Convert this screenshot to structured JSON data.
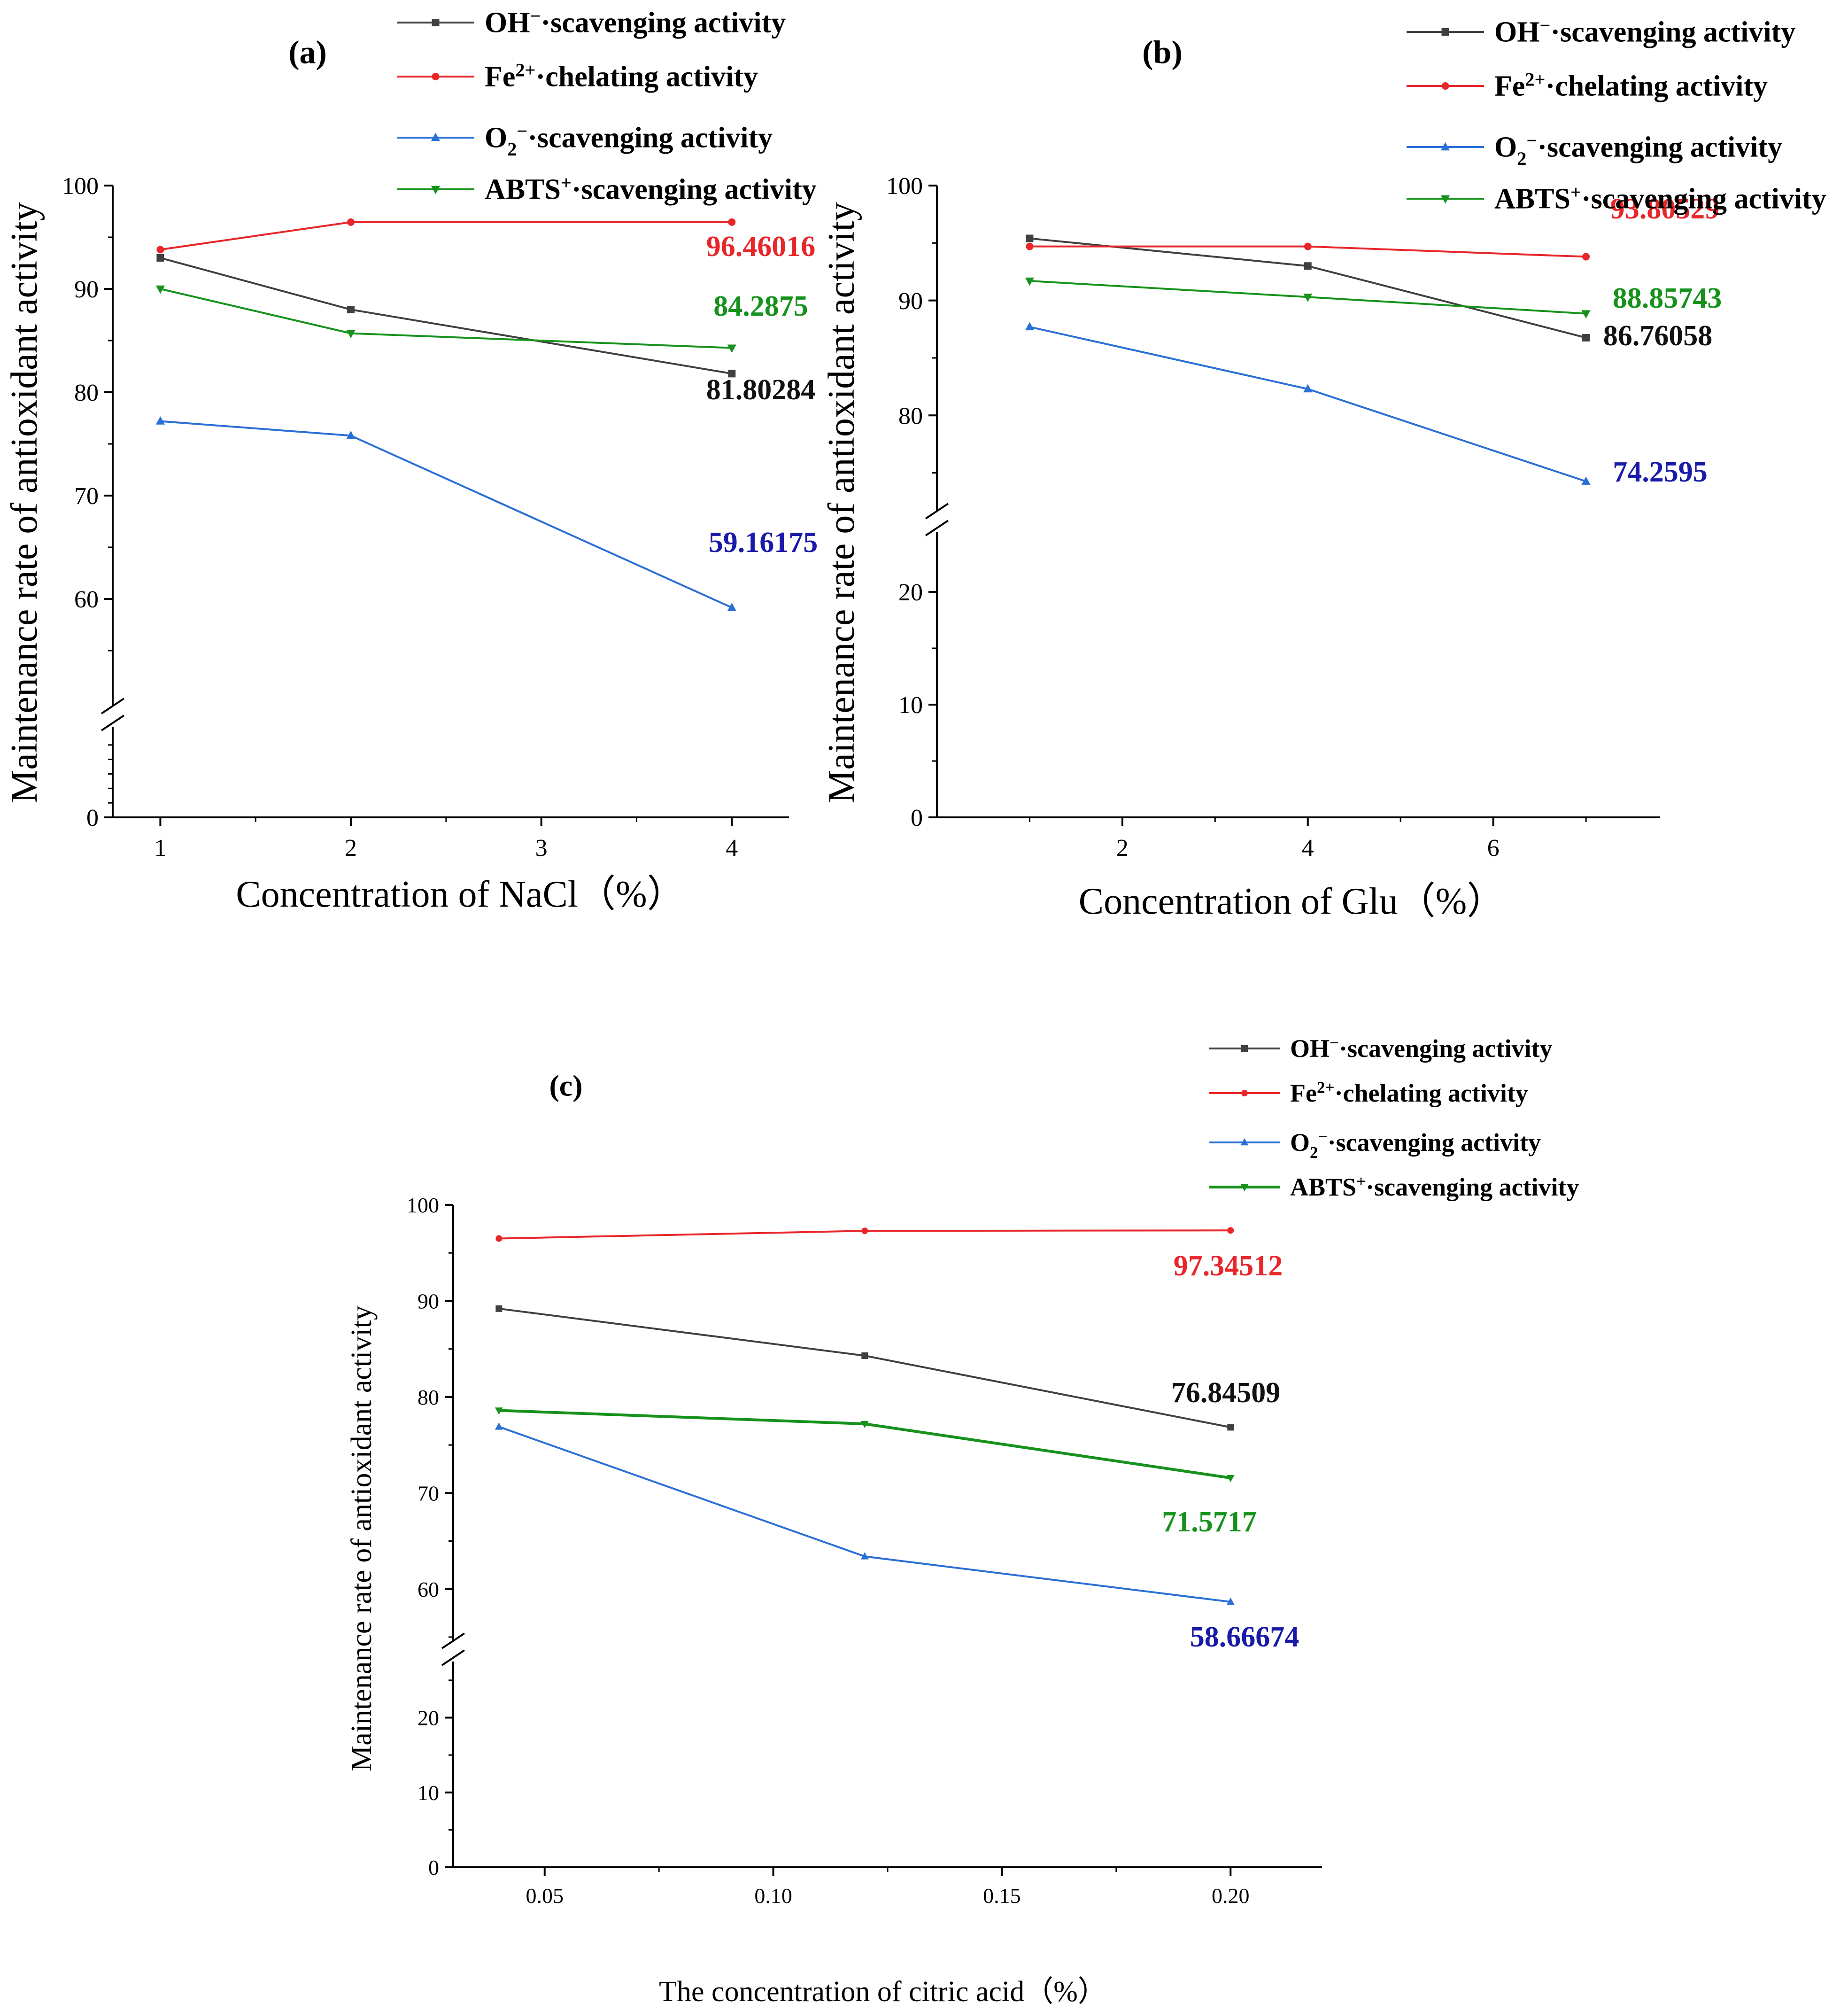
{
  "series_styles": [
    {
      "color": "#404040",
      "marker": "square"
    },
    {
      "color": "#e8262a",
      "marker": "circle"
    },
    {
      "color": "#2a6fd6",
      "marker": "triangle-up"
    },
    {
      "color": "#16921c",
      "marker": "triangle-down"
    }
  ],
  "chart_data": [
    {
      "panel_label": "(a)",
      "type": "line",
      "xlabel": "Concentration of NaCl（%）",
      "ylabel": "Maintenance rate of antioxidant activity",
      "xlim": [
        0.75,
        4.3
      ],
      "xticks": [
        1,
        2,
        3,
        4
      ],
      "x_tick_labels": [
        "1",
        "2",
        "3",
        "4"
      ],
      "y_upper_range": [
        50,
        100
      ],
      "y_lower_range": [
        0,
        6
      ],
      "yticks_upper": [
        60,
        70,
        80,
        90,
        100
      ],
      "yticks_lower": [
        0
      ],
      "axis_break": true,
      "x": [
        1,
        2,
        4
      ],
      "series": [
        {
          "name": "OH⁻·scavenging activity",
          "values": [
            93.0,
            88.0,
            81.80284
          ]
        },
        {
          "name": "Fe²⁺·chelating activity",
          "values": [
            93.8,
            96.46016,
            96.46016
          ]
        },
        {
          "name": "O₂⁻·scavenging activity",
          "values": [
            77.2,
            75.8,
            59.16175
          ]
        },
        {
          "name": "ABTS⁺·scavenging activity",
          "values": [
            90.0,
            85.7,
            84.2875
          ]
        }
      ],
      "annotations": [
        "81.80284",
        "96.46016",
        "59.16175",
        "84.2875"
      ],
      "legend_entries": [
        {
          "main": "OH",
          "sup": "−",
          "rest": "·scavenging activity"
        },
        {
          "main": "Fe",
          "sup": "2+",
          "rest": "·chelating activity"
        },
        {
          "main": "O",
          "sub": "2",
          "sup": "−",
          "rest": "·scavenging activity"
        },
        {
          "main": "ABTS",
          "sup": "+",
          "rest": "·scavenging activity"
        }
      ],
      "legend_position": "top-right"
    },
    {
      "panel_label": "(b)",
      "type": "line",
      "xlabel": "Concentration of Glu（%）",
      "ylabel": "Maintenance rate of antioxidant activity",
      "xlim": [
        0,
        7.8
      ],
      "xticks": [
        2,
        4,
        6
      ],
      "x_tick_labels": [
        "2",
        "4",
        "6"
      ],
      "y_upper_range": [
        72,
        100
      ],
      "y_lower_range": [
        0,
        25
      ],
      "yticks_upper": [
        80,
        90,
        100
      ],
      "yticks_lower": [
        0,
        10,
        20
      ],
      "axis_break": true,
      "x": [
        1,
        4,
        7
      ],
      "series": [
        {
          "name": "OH⁻·scavenging activity",
          "values": [
            95.4,
            93.0,
            86.76058
          ]
        },
        {
          "name": "Fe²⁺·chelating activity",
          "values": [
            94.7,
            94.7,
            93.80529
          ]
        },
        {
          "name": "O₂⁻·scavenging activity",
          "values": [
            87.7,
            82.3,
            74.2595
          ]
        },
        {
          "name": "ABTS⁺·scavenging activity",
          "values": [
            91.7,
            90.3,
            88.85743
          ]
        }
      ],
      "annotations": [
        "86.76058",
        "93.80529",
        "74.2595",
        "88.85743"
      ],
      "legend_entries": [
        {
          "main": "OH",
          "sup": "−",
          "rest": "·scavenging activity"
        },
        {
          "main": "Fe",
          "sup": "2+",
          "rest": "·chelating activity"
        },
        {
          "main": "O",
          "sub": "2",
          "sup": "−",
          "rest": "·scavenging activity"
        },
        {
          "main": "ABTS",
          "sup": "+",
          "rest": "·scavenging activity"
        }
      ],
      "legend_position": "top-right"
    },
    {
      "panel_label": "(c)",
      "type": "line",
      "xlabel": "The concentration of citric acid（%）",
      "ylabel": "Maintenance rate of antioxidant activity",
      "xlim": [
        0.03,
        0.22
      ],
      "xticks": [
        0.05,
        0.1,
        0.15,
        0.2
      ],
      "x_tick_labels": [
        "0.05",
        "0.10",
        "0.15",
        "0.20"
      ],
      "y_upper_range": [
        55,
        100
      ],
      "y_lower_range": [
        0,
        27
      ],
      "yticks_upper": [
        60,
        70,
        80,
        90,
        100
      ],
      "yticks_lower": [
        0,
        10,
        20
      ],
      "axis_break": true,
      "x": [
        0.04,
        0.12,
        0.2
      ],
      "series": [
        {
          "name": "OH⁻·scavenging activity",
          "values": [
            89.2,
            84.3,
            76.84509
          ]
        },
        {
          "name": "Fe²⁺·chelating activity",
          "values": [
            96.5,
            97.3,
            97.34512
          ]
        },
        {
          "name": "O₂⁻·scavenging activity",
          "values": [
            76.9,
            63.4,
            58.66674
          ]
        },
        {
          "name": "ABTS⁺·scavenging activity",
          "values": [
            78.6,
            77.2,
            71.5717
          ]
        }
      ],
      "annotations": [
        "76.84509",
        "97.34512",
        "58.66674",
        "71.5717"
      ],
      "legend_entries": [
        {
          "main": "OH",
          "sup": "−",
          "rest": "·scavenging activity"
        },
        {
          "main": "Fe",
          "sup": "2+",
          "rest": "·chelating activity"
        },
        {
          "main": "O",
          "sub": "2",
          "sup": "−",
          "rest": "·scavenging activity"
        },
        {
          "main": "ABTS",
          "sup": "+",
          "rest": "·scavenging activity"
        }
      ],
      "legend_position": "top-right"
    }
  ]
}
